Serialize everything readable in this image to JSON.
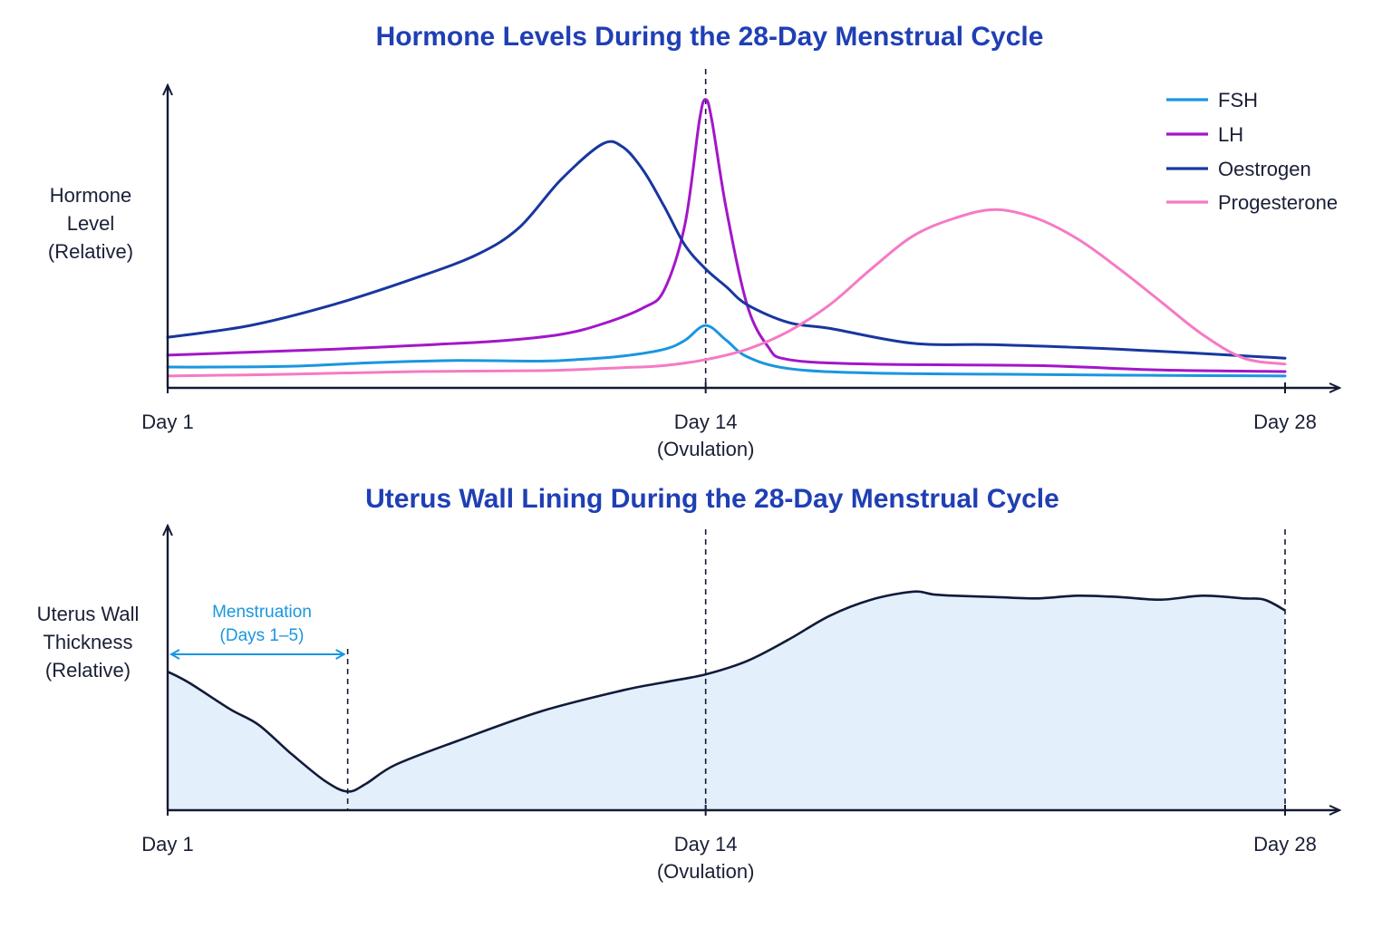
{
  "colors": {
    "title": "#1f3fb4",
    "axis": "#141a33",
    "FSH": "#1a96e0",
    "LH": "#a316c9",
    "Oestrogen": "#1936a0",
    "Progesterone": "#f57ac4",
    "lining_fill": "#e3effb",
    "lining_line": "#121a3a",
    "annotation": "#1a96e0"
  },
  "chart_data": [
    {
      "type": "line",
      "title": "Hormone Levels During the 28-Day Menstrual Cycle",
      "ylabel": [
        "Hormone",
        "Level",
        "(Relative)"
      ],
      "xlim": [
        1,
        28
      ],
      "ylim": [
        0,
        100
      ],
      "grid": false,
      "legend_placement": "top-right",
      "x_ticks": [
        {
          "x": 1,
          "lines": [
            "Day 1"
          ]
        },
        {
          "x": 14,
          "lines": [
            "Day 14",
            "(Ovulation)"
          ]
        },
        {
          "x": 28,
          "lines": [
            "Day 28"
          ]
        }
      ],
      "vlines": [
        14
      ],
      "series": [
        {
          "name": "FSH",
          "points": [
            [
              1,
              7
            ],
            [
              2,
              7
            ],
            [
              4,
              7.3
            ],
            [
              6,
              8.5
            ],
            [
              8,
              9.2
            ],
            [
              10,
              9
            ],
            [
              11,
              9.6
            ],
            [
              12,
              10.7
            ],
            [
              13,
              13
            ],
            [
              13.5,
              16
            ],
            [
              14,
              21
            ],
            [
              14.5,
              16
            ],
            [
              15,
              10.5
            ],
            [
              16,
              6.5
            ],
            [
              18,
              5
            ],
            [
              22,
              4.5
            ],
            [
              25,
              4.2
            ],
            [
              28,
              4
            ]
          ]
        },
        {
          "name": "LH",
          "points": [
            [
              1,
              11
            ],
            [
              3,
              12
            ],
            [
              5,
              13
            ],
            [
              7,
              14.3
            ],
            [
              9,
              15.8
            ],
            [
              10.5,
              18
            ],
            [
              11.5,
              21.5
            ],
            [
              12.5,
              27
            ],
            [
              13,
              33
            ],
            [
              13.5,
              55
            ],
            [
              13.85,
              90
            ],
            [
              14,
              97
            ],
            [
              14.15,
              90
            ],
            [
              14.5,
              60
            ],
            [
              15,
              28
            ],
            [
              15.5,
              14
            ],
            [
              16,
              9.5
            ],
            [
              18,
              8
            ],
            [
              22,
              7.5
            ],
            [
              25,
              6
            ],
            [
              28,
              5.5
            ]
          ]
        },
        {
          "name": "Oestrogen",
          "points": [
            [
              1,
              17
            ],
            [
              3,
              21
            ],
            [
              5,
              28
            ],
            [
              7,
              37
            ],
            [
              8.5,
              45
            ],
            [
              9.5,
              54
            ],
            [
              10.5,
              70
            ],
            [
              11.5,
              82
            ],
            [
              12,
              81
            ],
            [
              12.5,
              73
            ],
            [
              13,
              61
            ],
            [
              13.5,
              48
            ],
            [
              14,
              40
            ],
            [
              14.5,
              34
            ],
            [
              15,
              28
            ],
            [
              16,
              22
            ],
            [
              17,
              20
            ],
            [
              19,
              15
            ],
            [
              21,
              14.5
            ],
            [
              24,
              13
            ],
            [
              28,
              10
            ]
          ]
        },
        {
          "name": "Progesterone",
          "points": [
            [
              1,
              4
            ],
            [
              4,
              4.6
            ],
            [
              7,
              5.5
            ],
            [
              10,
              5.8
            ],
            [
              12,
              6.8
            ],
            [
              13,
              7.5
            ],
            [
              14,
              9.5
            ],
            [
              15,
              13
            ],
            [
              16,
              19
            ],
            [
              17,
              28
            ],
            [
              18,
              40
            ],
            [
              19,
              51
            ],
            [
              20,
              57
            ],
            [
              21,
              60
            ],
            [
              22,
              57
            ],
            [
              23,
              50
            ],
            [
              24,
              40
            ],
            [
              25,
              29
            ],
            [
              26,
              18
            ],
            [
              27,
              10
            ],
            [
              28,
              8
            ]
          ]
        }
      ]
    },
    {
      "type": "area",
      "title": "Uterus Wall Lining During the 28-Day Menstrual Cycle",
      "ylabel": [
        "Uterus Wall",
        "Thickness",
        "(Relative)"
      ],
      "xlim": [
        1,
        28
      ],
      "ylim": [
        0,
        100
      ],
      "grid": false,
      "x_ticks": [
        {
          "x": 1,
          "lines": [
            "Day 1"
          ]
        },
        {
          "x": 14,
          "lines": [
            "Day 14",
            "(Ovulation)"
          ]
        },
        {
          "x": 28,
          "lines": [
            "Day 28"
          ]
        }
      ],
      "vlines": [
        5.35,
        14,
        28
      ],
      "series": [
        {
          "points": [
            [
              1,
              52
            ],
            [
              1.5,
              48
            ],
            [
              2.5,
              38
            ],
            [
              3.2,
              32
            ],
            [
              4,
              21
            ],
            [
              4.8,
              11
            ],
            [
              5.35,
              7
            ],
            [
              5.8,
              10
            ],
            [
              6.5,
              17
            ],
            [
              8,
              26
            ],
            [
              10,
              37
            ],
            [
              12,
              45
            ],
            [
              13,
              48
            ],
            [
              14,
              51
            ],
            [
              15,
              56
            ],
            [
              16,
              64
            ],
            [
              17,
              73
            ],
            [
              18,
              79
            ],
            [
              19,
              82
            ],
            [
              19.5,
              81
            ],
            [
              20,
              80.5
            ],
            [
              21,
              80
            ],
            [
              22,
              79.5
            ],
            [
              23,
              80.5
            ],
            [
              24,
              80
            ],
            [
              25,
              79
            ],
            [
              26,
              80.5
            ],
            [
              27,
              79.5
            ],
            [
              27.5,
              79
            ],
            [
              28,
              75
            ]
          ]
        }
      ],
      "annotation": {
        "lines": [
          "Menstruation",
          "(Days 1–5)"
        ],
        "from": 1,
        "to": 5.35
      }
    }
  ]
}
